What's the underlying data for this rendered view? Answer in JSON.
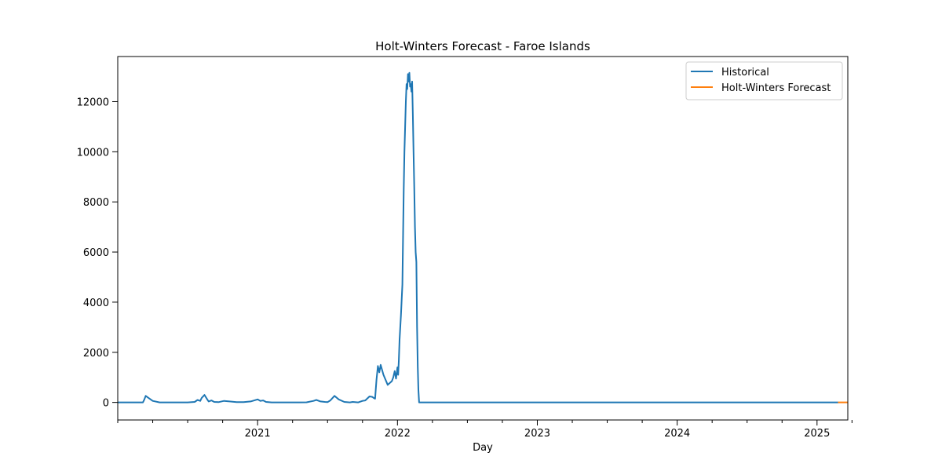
{
  "chart_data": {
    "type": "line",
    "title": "Holt-Winters Forecast - Faroe Islands",
    "xlabel": "Day",
    "ylabel": "",
    "xlim": [
      2020.0,
      2025.22
    ],
    "ylim": [
      -700,
      13800
    ],
    "x_ticks": [
      {
        "value": 2021.0,
        "label": "2021"
      },
      {
        "value": 2022.0,
        "label": "2022"
      },
      {
        "value": 2023.0,
        "label": "2023"
      },
      {
        "value": 2024.0,
        "label": "2024"
      },
      {
        "value": 2025.0,
        "label": "2025"
      }
    ],
    "x_minor_ticks": [
      2020.0,
      2020.25,
      2020.5,
      2020.75,
      2021.25,
      2021.5,
      2021.75,
      2022.25,
      2022.5,
      2022.75,
      2023.25,
      2023.5,
      2023.75,
      2024.25,
      2024.5,
      2024.75,
      2025.25
    ],
    "y_ticks": [
      {
        "value": 0,
        "label": "0"
      },
      {
        "value": 2000,
        "label": "2000"
      },
      {
        "value": 4000,
        "label": "4000"
      },
      {
        "value": 6000,
        "label": "6000"
      },
      {
        "value": 8000,
        "label": "8000"
      },
      {
        "value": 10000,
        "label": "10000"
      },
      {
        "value": 12000,
        "label": "12000"
      }
    ],
    "legend_position": "top-right",
    "series": [
      {
        "name": "Historical",
        "color": "#1f77b4",
        "x": [
          2020.0,
          2020.18,
          2020.19,
          2020.2,
          2020.22,
          2020.25,
          2020.3,
          2020.4,
          2020.5,
          2020.55,
          2020.57,
          2020.59,
          2020.6,
          2020.62,
          2020.64,
          2020.65,
          2020.67,
          2020.69,
          2020.72,
          2020.76,
          2020.8,
          2020.85,
          2020.9,
          2020.95,
          2021.0,
          2021.02,
          2021.04,
          2021.06,
          2021.1,
          2021.2,
          2021.3,
          2021.35,
          2021.4,
          2021.42,
          2021.45,
          2021.48,
          2021.5,
          2021.52,
          2021.55,
          2021.58,
          2021.62,
          2021.66,
          2021.68,
          2021.72,
          2021.75,
          2021.77,
          2021.8,
          2021.82,
          2021.83,
          2021.84,
          2021.85,
          2021.86,
          2021.87,
          2021.88,
          2021.9,
          2021.93,
          2021.96,
          2021.97,
          2021.98,
          2021.99,
          2022.0,
          2022.005,
          2022.01,
          2022.015,
          2022.02,
          2022.025,
          2022.03,
          2022.035,
          2022.04,
          2022.045,
          2022.05,
          2022.055,
          2022.06,
          2022.065,
          2022.07,
          2022.075,
          2022.08,
          2022.085,
          2022.09,
          2022.095,
          2022.1,
          2022.105,
          2022.11,
          2022.115,
          2022.12,
          2022.125,
          2022.13,
          2022.135,
          2022.14,
          2022.145,
          2022.15,
          2022.155,
          2022.16,
          2022.165,
          2022.17,
          2022.175,
          2022.18,
          2022.185,
          2022.19,
          2022.4,
          2023.0,
          2024.0,
          2025.0,
          2025.15
        ],
        "y": [
          0,
          0,
          120,
          260,
          180,
          60,
          0,
          0,
          0,
          20,
          100,
          60,
          180,
          300,
          120,
          40,
          80,
          20,
          10,
          60,
          40,
          10,
          10,
          40,
          120,
          60,
          80,
          20,
          0,
          0,
          0,
          5,
          60,
          100,
          40,
          20,
          10,
          80,
          260,
          120,
          20,
          0,
          20,
          0,
          60,
          80,
          240,
          220,
          180,
          150,
          900,
          1450,
          1200,
          1500,
          1100,
          700,
          850,
          1000,
          1250,
          950,
          1400,
          1100,
          1700,
          2500,
          3000,
          3500,
          4100,
          4700,
          6500,
          8500,
          10000,
          11000,
          12000,
          12700,
          12500,
          13100,
          12800,
          13150,
          12600,
          12700,
          12400,
          12800,
          11500,
          10000,
          8600,
          7000,
          6000,
          5600,
          3000,
          1400,
          500,
          0,
          0,
          0,
          0,
          0,
          0,
          0,
          0,
          0,
          0,
          0,
          0,
          0
        ]
      },
      {
        "name": "Holt-Winters Forecast",
        "color": "#ff7f0e",
        "x": [
          2025.15,
          2025.22
        ],
        "y": [
          0,
          0
        ]
      }
    ]
  }
}
